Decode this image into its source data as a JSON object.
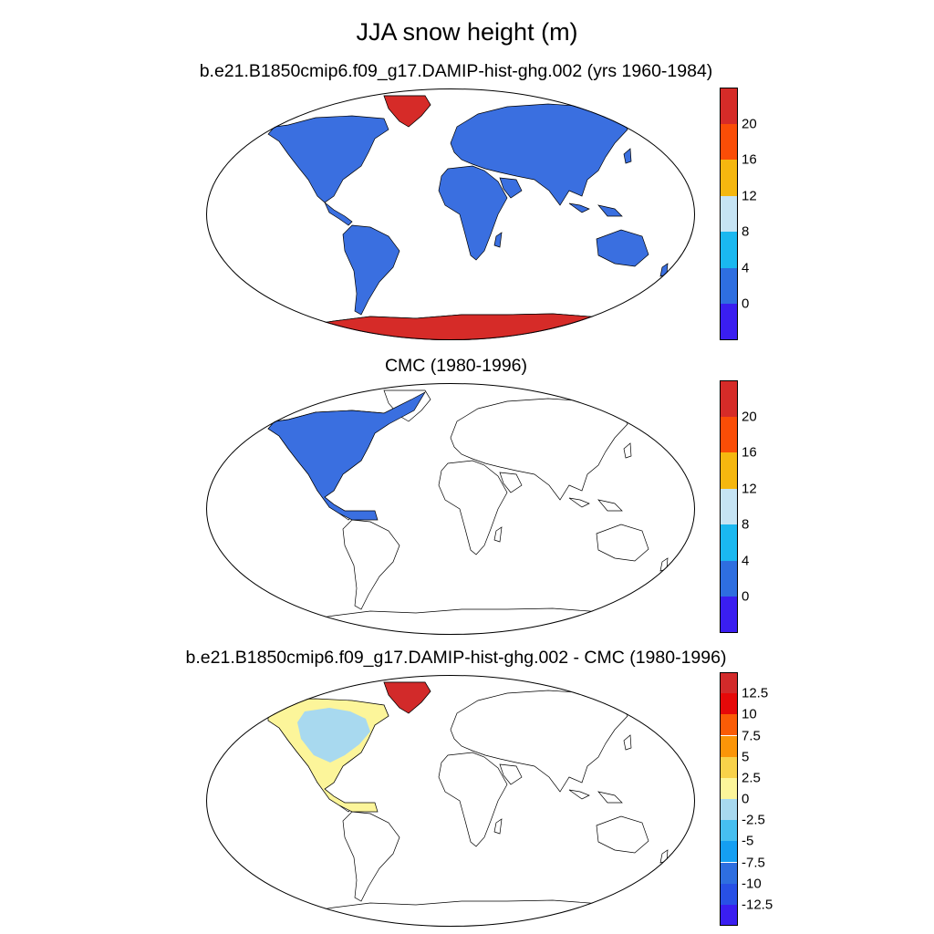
{
  "title": "JJA snow height (m)",
  "panels": [
    {
      "title": "b.e21.B1850cmip6.f09_g17.DAMIP-hist-ghg.002 (yrs 1960-1984)",
      "colorbar": {
        "colors": [
          "#3a1ef0",
          "#2e6ee0",
          "#1ab8f0",
          "#c6e4f4",
          "#f5b70f",
          "#fa4d07",
          "#d62b28"
        ],
        "ticks": [
          "0",
          "4",
          "8",
          "12",
          "16",
          "20"
        ]
      }
    },
    {
      "title": "CMC (1980-1996)",
      "colorbar": {
        "colors": [
          "#3a1ef0",
          "#2e6ee0",
          "#1ab8f0",
          "#c6e4f4",
          "#f5b70f",
          "#fa4d07",
          "#d62b28"
        ],
        "ticks": [
          "0",
          "4",
          "8",
          "12",
          "16",
          "20"
        ]
      }
    },
    {
      "title": "b.e21.B1850cmip6.f09_g17.DAMIP-hist-ghg.002 - CMC (1980-1996)",
      "colorbar": {
        "colors": [
          "#3a1ef0",
          "#2850e6",
          "#2e6ee0",
          "#159ff2",
          "#46bff0",
          "#a8d9ef",
          "#fcf59a",
          "#f8d24a",
          "#fb9508",
          "#fa5c06",
          "#e60909",
          "#d22a2a"
        ],
        "ticks": [
          "-12.5",
          "-10",
          "-7.5",
          "-5",
          "-2.5",
          "0",
          "2.5",
          "5",
          "7.5",
          "10",
          "12.5"
        ]
      }
    }
  ]
}
